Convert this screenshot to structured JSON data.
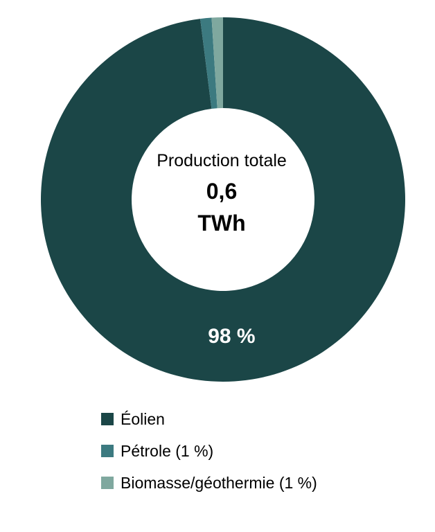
{
  "chart_data": {
    "type": "pie",
    "center_title": "Production totale",
    "center_value": "0,6",
    "center_unit": "TWh",
    "categories": [
      "Éolien",
      "Pétrole (1 %)",
      "Biomasse/géothermie (1 %)"
    ],
    "values": [
      98,
      1,
      1
    ],
    "colors": [
      "#1b4647",
      "#3c7a80",
      "#7fa89f"
    ],
    "data_labels": [
      "98 %",
      "",
      ""
    ],
    "data_label_color": "#ffffff",
    "legend_position": "bottom"
  }
}
